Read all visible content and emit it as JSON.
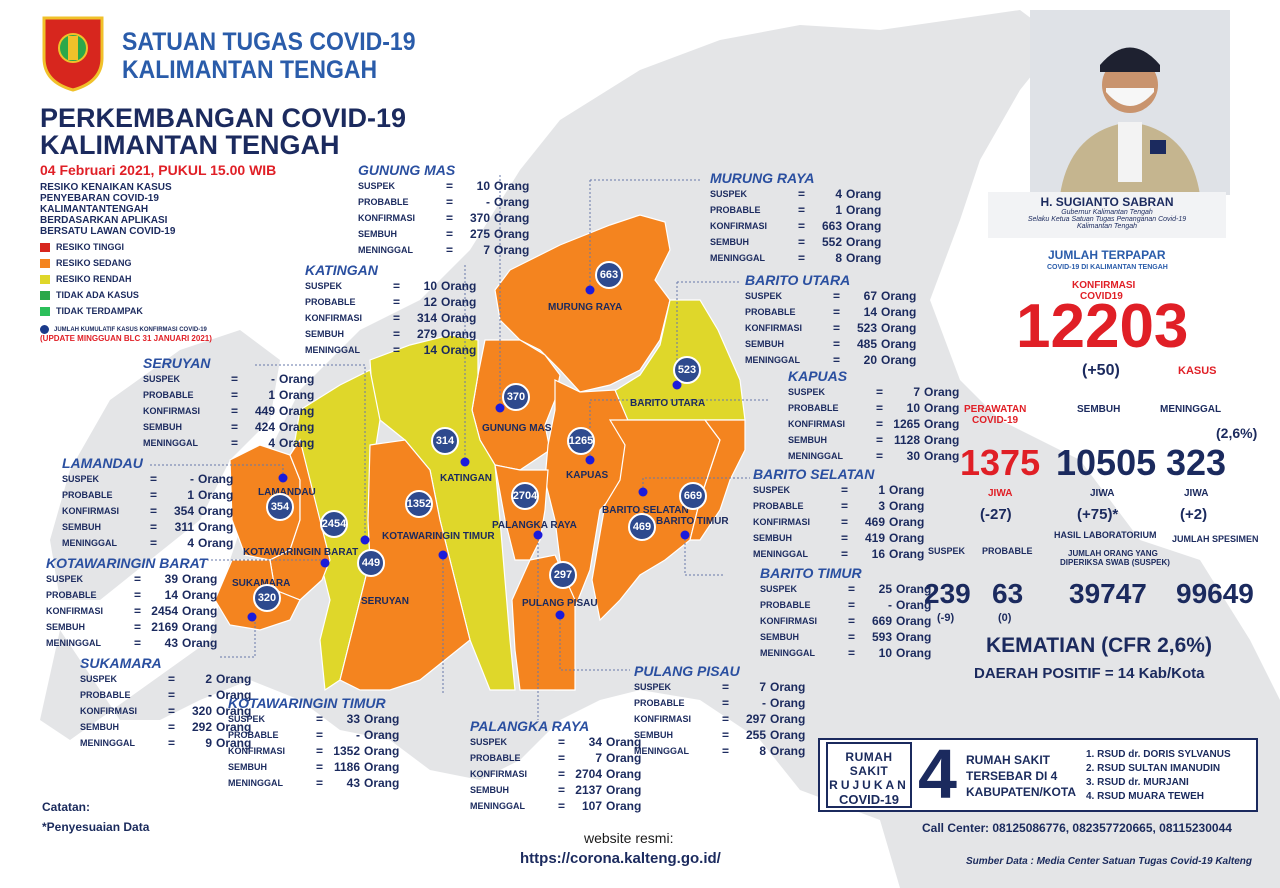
{
  "header": {
    "org_line1": "SATUAN TUGAS COVID-19",
    "org_line2": "KALIMANTAN TENGAH",
    "title_line1": "PERKEMBANGAN COVID-19",
    "title_line2": "KALIMANTAN TENGAH",
    "date": "04 Februari 2021, PUKUL 15.00 WIB"
  },
  "legend": {
    "heading": "RESIKO KENAIKAN KASUS PENYEBARAN COVID-19 KALIMANTANTENGAH BERDASARKAN APLIKASI BERSATU LAWAN COVID-19",
    "items": [
      {
        "label": "RESIKO TINGGI",
        "color": "#d7261e"
      },
      {
        "label": "RESIKO SEDANG",
        "color": "#f4841f"
      },
      {
        "label": "RESIKO RENDAH",
        "color": "#dfd72a"
      },
      {
        "label": "TIDAK ADA KASUS",
        "color": "#2ba84a"
      },
      {
        "label": "TIDAK TERDAMPAK",
        "color": "#2bbf5a"
      }
    ],
    "dot_note": "JUMLAH KUMULATIF KASUS KONFIRMASI COVID-19",
    "update_note": "(UPDATE MINGGUAN BLC 31 JANUARI 2021)"
  },
  "stat_labels": {
    "suspek": "SUSPEK",
    "probable": "PROBABLE",
    "konfirmasi": "KONFIRMASI",
    "sembuh": "SEMBUH",
    "meninggal": "MENINGGAL",
    "eq": "=",
    "unit": "Orang"
  },
  "regions": [
    {
      "name": "GUNUNG MAS",
      "suspek": "10",
      "probable": "-",
      "konfirmasi": "370",
      "sembuh": "275",
      "meninggal": "7"
    },
    {
      "name": "MURUNG RAYA",
      "suspek": "4",
      "probable": "1",
      "konfirmasi": "663",
      "sembuh": "552",
      "meninggal": "8"
    },
    {
      "name": "KATINGAN",
      "suspek": "10",
      "probable": "12",
      "konfirmasi": "314",
      "sembuh": "279",
      "meninggal": "14"
    },
    {
      "name": "BARITO UTARA",
      "suspek": "67",
      "probable": "14",
      "konfirmasi": "523",
      "sembuh": "485",
      "meninggal": "20"
    },
    {
      "name": "SERUYAN",
      "suspek": "-",
      "probable": "1",
      "konfirmasi": "449",
      "sembuh": "424",
      "meninggal": "4"
    },
    {
      "name": "KAPUAS",
      "suspek": "7",
      "probable": "10",
      "konfirmasi": "1265",
      "sembuh": "1128",
      "meninggal": "30"
    },
    {
      "name": "LAMANDAU",
      "suspek": "-",
      "probable": "1",
      "konfirmasi": "354",
      "sembuh": "311",
      "meninggal": "4"
    },
    {
      "name": "BARITO SELATAN",
      "suspek": "1",
      "probable": "3",
      "konfirmasi": "469",
      "sembuh": "419",
      "meninggal": "16"
    },
    {
      "name": "KOTAWARINGIN BARAT",
      "suspek": "39",
      "probable": "14",
      "konfirmasi": "2454",
      "sembuh": "2169",
      "meninggal": "43"
    },
    {
      "name": "BARITO TIMUR",
      "suspek": "25",
      "probable": "-",
      "konfirmasi": "669",
      "sembuh": "593",
      "meninggal": "10"
    },
    {
      "name": "SUKAMARA",
      "suspek": "2",
      "probable": "-",
      "konfirmasi": "320",
      "sembuh": "292",
      "meninggal": "9"
    },
    {
      "name": "PULANG PISAU",
      "suspek": "7",
      "probable": "-",
      "konfirmasi": "297",
      "sembuh": "255",
      "meninggal": "8"
    },
    {
      "name": "KOTAWARINGIN TIMUR",
      "suspek": "33",
      "probable": "-",
      "konfirmasi": "1352",
      "sembuh": "1186",
      "meninggal": "43"
    },
    {
      "name": "PALANGKA RAYA",
      "suspek": "34",
      "probable": "7",
      "konfirmasi": "2704",
      "sembuh": "2137",
      "meninggal": "107"
    }
  ],
  "map_labels": [
    "MURUNG RAYA",
    "GUNUNG MAS",
    "BARITO UTARA",
    "KATINGAN",
    "KAPUAS",
    "LAMANDAU",
    "PALANGKA RAYA",
    "BARITO SELATAN",
    "BARITO TIMUR",
    "KOTAWARINGIN BARAT",
    "KOTAWARINGIN TIMUR",
    "SUKAMARA",
    "SERUYAN",
    "PULANG PISAU"
  ],
  "bubbles": [
    "663",
    "370",
    "523",
    "314",
    "1265",
    "354",
    "2454",
    "1352",
    "2704",
    "669",
    "469",
    "449",
    "297",
    "320"
  ],
  "governor": {
    "name": "H. SUGIANTO SABRAN",
    "role1": "Gubernur Kalimantan Tengah",
    "role2": "Selaku Ketua Satuan Tugas Penanganan Covid-19",
    "role3": "Kalimantan Tengah"
  },
  "summary": {
    "jumlah_title": "JUMLAH TERPAPAR",
    "jumlah_sub": "COVID-19 DI KALIMANTAN TENGAH",
    "konfirmasi_lbl1": "KONFIRMASI",
    "konfirmasi_lbl2": "COVID19",
    "konfirmasi_total": "12203",
    "konfirmasi_delta": "(+50)",
    "kasus_lbl": "KASUS",
    "perawatan_lbl1": "PERAWATAN",
    "perawatan_lbl2": "COVID-19",
    "sembuh_lbl": "SEMBUH",
    "meninggal_lbl": "MENINGGAL",
    "cfr_small": "(2,6%)",
    "perawatan_val": "1375",
    "sembuh_val": "10505",
    "meninggal_val": "323",
    "jiwa": "JIWA",
    "perawatan_delta": "(-27)",
    "sembuh_delta": "(+75)*",
    "meninggal_delta": "(+2)",
    "suspek_lbl": "SUSPEK",
    "probable_lbl": "PROBABLE",
    "lab_lbl": "HASIL LABORATORIUM",
    "spesimen_lbl": "JUMLAH SPESIMEN",
    "swab_lbl1": "JUMLAH ORANG YANG",
    "swab_lbl2": "DIPERIKSA SWAB (SUSPEK)",
    "suspek_val": "239",
    "probable_val": "63",
    "swab_val": "39747",
    "spesimen_val": "99649",
    "suspek_delta": "(-9)",
    "probable_delta": "(0)",
    "kematian": "KEMATIAN (CFR 2,6%)",
    "daerah_positif": "DAERAH POSITIF = 14 Kab/Kota"
  },
  "hospital": {
    "left_l1": "RUMAH SAKIT",
    "left_l2": "RUJUKAN",
    "left_l3": "COVID-19",
    "number": "4",
    "mid_l1": "RUMAH SAKIT",
    "mid_l2": "TERSEBAR DI 4",
    "mid_l3": "KABUPATEN/KOTA",
    "list": [
      "1. RSUD dr. DORIS SYLVANUS",
      "2. RSUD SULTAN IMANUDIN",
      "3. RSUD dr. MURJANI",
      "4. RSUD MUARA TEWEH"
    ]
  },
  "footer": {
    "catatan": "Catatan:",
    "catatan_note": "*Penyesuaian Data",
    "website_lbl": "website resmi:",
    "website_url": "https://corona.kalteng.go.id/",
    "call_center_lbl": "Call Center",
    "call_center_nums": ": 08125086776, 082357720665, 08115230044",
    "sumber": "Sumber Data : Media Center Satuan Tugas Covid-19 Kalteng"
  },
  "colors": {
    "orange": "#f4841f",
    "yellow": "#dfd72a",
    "navy": "#1b2a5e",
    "red": "#e01f26",
    "bg_map": "#e4e5e7"
  }
}
